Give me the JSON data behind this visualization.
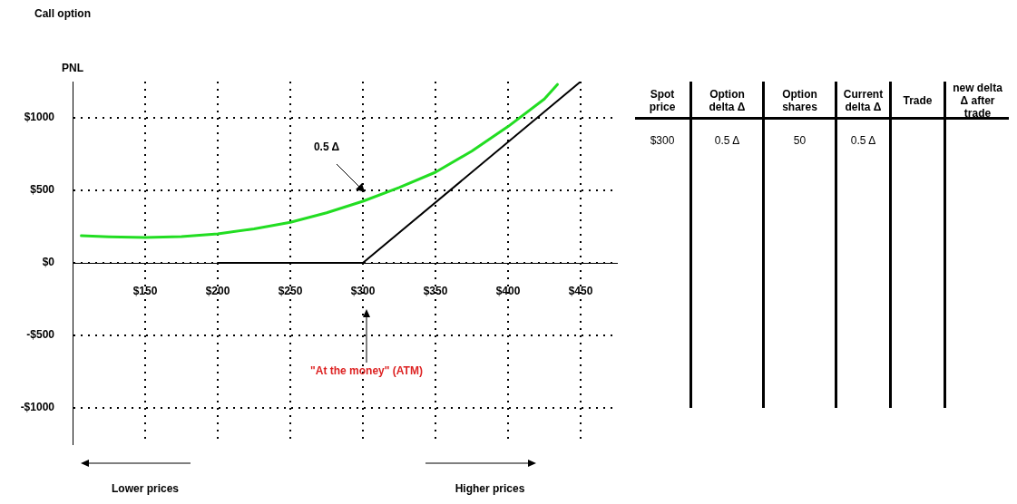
{
  "chart_data": [
    {
      "type": "line",
      "title": "Call option",
      "ylabel": "PNL",
      "xlim": [
        100,
        475
      ],
      "ylim": [
        -1250,
        1250
      ],
      "xticks": [
        {
          "value": 150,
          "label": "$150"
        },
        {
          "value": 200,
          "label": "$200"
        },
        {
          "value": 250,
          "label": "$250"
        },
        {
          "value": 300,
          "label": "$300"
        },
        {
          "value": 350,
          "label": "$350"
        },
        {
          "value": 400,
          "label": "$400"
        },
        {
          "value": 450,
          "label": "$450"
        }
      ],
      "yticks": [
        {
          "value": -1000,
          "label": "-$1000"
        },
        {
          "value": -500,
          "label": "-$500"
        },
        {
          "value": 0,
          "label": "$0"
        },
        {
          "value": 500,
          "label": "$500"
        },
        {
          "value": 1000,
          "label": "$1000"
        }
      ],
      "grid": true,
      "legend": false,
      "marker": "none",
      "series": [
        {
          "color": "#22dd22",
          "x": [
            106,
            125,
            150,
            175,
            200,
            225,
            250,
            275,
            300,
            325,
            350,
            375,
            400,
            425,
            434
          ],
          "values": [
            187,
            180,
            175,
            182,
            200,
            235,
            280,
            345,
            425,
            520,
            625,
            770,
            940,
            1130,
            1230
          ]
        },
        {
          "color": "#000000",
          "x": [
            200,
            300,
            450
          ],
          "values": [
            0,
            0,
            1250
          ]
        }
      ],
      "annotations": [
        "0.5 Δ",
        "\"At the money\" (ATM)",
        "Lower prices",
        "Higher prices"
      ]
    },
    {
      "type": "other",
      "categories": [
        "Spot price",
        "Option delta Δ",
        "Option shares",
        "Current delta Δ",
        "Trade",
        "new delta Δ after trade"
      ],
      "annotations": [
        "$300",
        "0.5 Δ",
        "50",
        "0.5 Δ"
      ]
    }
  ]
}
